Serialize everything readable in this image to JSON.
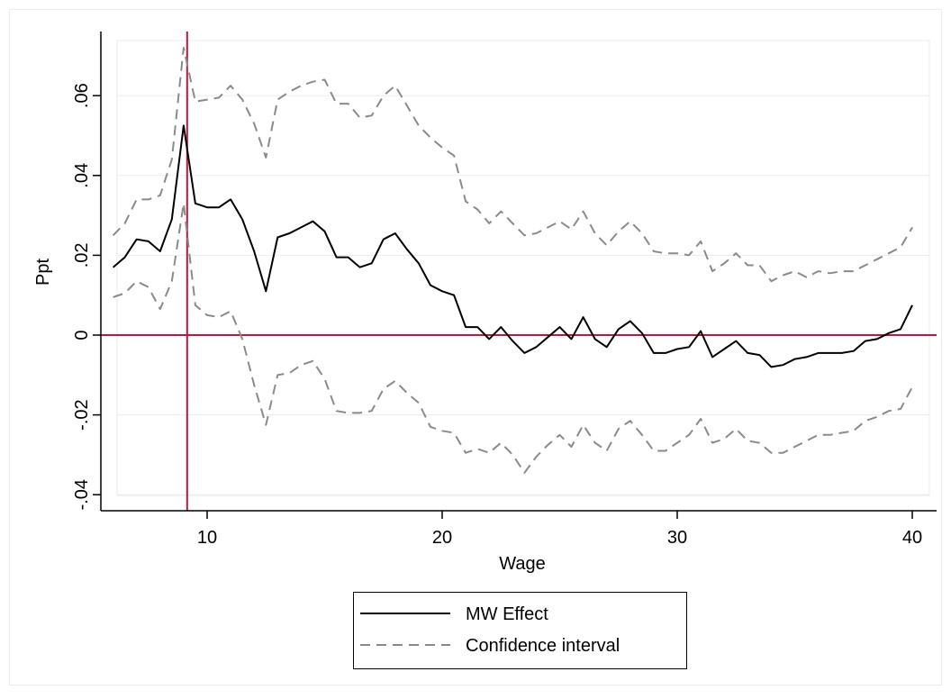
{
  "chart_data": {
    "type": "line",
    "xlabel": "Wage",
    "ylabel": "Ppt",
    "xlim": [
      6,
      41
    ],
    "ylim": [
      -0.044,
      0.076
    ],
    "xticks": [
      10,
      20,
      30,
      40
    ],
    "xtick_labels": [
      "10",
      "20",
      "30",
      "40"
    ],
    "yticks": [
      -0.04,
      -0.02,
      0,
      0.02,
      0.04,
      0.06
    ],
    "ytick_labels": [
      "-.04",
      "-.02",
      "0",
      ".02",
      ".04",
      ".06"
    ],
    "reference_lines": {
      "vertical_x": 9.15,
      "horizontal_y": 0,
      "color": "#c0183a"
    },
    "grid": "horizontal",
    "legend_position": "bottom",
    "x": [
      6.0,
      6.5,
      7.0,
      7.5,
      8.0,
      8.5,
      9.0,
      9.5,
      10.0,
      10.5,
      11.0,
      11.5,
      12.0,
      12.5,
      13.0,
      13.5,
      14.0,
      14.5,
      15.0,
      15.5,
      16.0,
      16.5,
      17.0,
      17.5,
      18.0,
      18.5,
      19.0,
      19.5,
      20.0,
      20.5,
      21.0,
      21.5,
      22.0,
      22.5,
      23.0,
      23.5,
      24.0,
      24.5,
      25.0,
      25.5,
      26.0,
      26.5,
      27.0,
      27.5,
      28.0,
      28.5,
      29.0,
      29.5,
      30.0,
      30.5,
      31.0,
      31.5,
      32.0,
      32.5,
      33.0,
      33.5,
      34.0,
      34.5,
      35.0,
      35.5,
      36.0,
      36.5,
      37.0,
      37.5,
      38.0,
      38.5,
      39.0,
      39.5,
      40.0
    ],
    "series": [
      {
        "name": "MW Effect",
        "color": "#000000",
        "dash": "solid",
        "values": [
          0.017,
          0.0195,
          0.024,
          0.0235,
          0.021,
          0.029,
          0.0525,
          0.033,
          0.032,
          0.032,
          0.034,
          0.029,
          0.021,
          0.011,
          0.0245,
          0.0255,
          0.027,
          0.0285,
          0.026,
          0.0195,
          0.0195,
          0.017,
          0.018,
          0.024,
          0.0255,
          0.0215,
          0.018,
          0.0125,
          0.011,
          0.01,
          0.002,
          0.002,
          -0.001,
          0.002,
          -0.0015,
          -0.0045,
          -0.003,
          -0.0005,
          0.002,
          -0.001,
          0.0045,
          -0.001,
          -0.003,
          0.0015,
          0.0035,
          0.0005,
          -0.0045,
          -0.0045,
          -0.0035,
          -0.003,
          0.001,
          -0.0055,
          -0.0035,
          -0.0015,
          -0.0045,
          -0.005,
          -0.008,
          -0.0075,
          -0.006,
          -0.0055,
          -0.0045,
          -0.0045,
          -0.0045,
          -0.004,
          -0.0015,
          -0.001,
          0.0005,
          0.0015,
          0.0075
        ]
      },
      {
        "name": "Confidence interval",
        "color": "#8a8a8a",
        "dash": "dashed",
        "values": [
          0.025,
          0.028,
          0.034,
          0.034,
          0.035,
          0.044,
          0.072,
          0.0585,
          0.059,
          0.0595,
          0.0625,
          0.059,
          0.053,
          0.0445,
          0.059,
          0.061,
          0.0625,
          0.0635,
          0.064,
          0.058,
          0.058,
          0.0545,
          0.055,
          0.06,
          0.0625,
          0.0575,
          0.0525,
          0.0495,
          0.047,
          0.045,
          0.0335,
          0.0315,
          0.028,
          0.031,
          0.028,
          0.025,
          0.0255,
          0.027,
          0.0285,
          0.0265,
          0.031,
          0.0255,
          0.0225,
          0.026,
          0.0285,
          0.0255,
          0.021,
          0.0205,
          0.0205,
          0.02,
          0.0235,
          0.016,
          0.018,
          0.0205,
          0.0175,
          0.0175,
          0.0135,
          0.015,
          0.016,
          0.0145,
          0.016,
          0.0155,
          0.016,
          0.016,
          0.0175,
          0.019,
          0.0205,
          0.022,
          0.027
        ]
      },
      {
        "name": "",
        "color": "#8a8a8a",
        "dash": "dashed",
        "values": [
          0.0095,
          0.0105,
          0.0135,
          0.012,
          0.0065,
          0.0135,
          0.033,
          0.0075,
          0.005,
          0.0045,
          0.006,
          -0.001,
          -0.0125,
          -0.0225,
          -0.01,
          -0.0095,
          -0.0075,
          -0.0065,
          -0.011,
          -0.019,
          -0.0195,
          -0.0195,
          -0.019,
          -0.0135,
          -0.0115,
          -0.0145,
          -0.017,
          -0.023,
          -0.024,
          -0.0245,
          -0.0295,
          -0.0285,
          -0.0295,
          -0.027,
          -0.03,
          -0.0345,
          -0.0305,
          -0.0275,
          -0.025,
          -0.028,
          -0.0225,
          -0.027,
          -0.029,
          -0.0235,
          -0.0215,
          -0.025,
          -0.029,
          -0.029,
          -0.027,
          -0.025,
          -0.021,
          -0.027,
          -0.026,
          -0.0235,
          -0.0265,
          -0.027,
          -0.0295,
          -0.0295,
          -0.028,
          -0.0265,
          -0.025,
          -0.025,
          -0.0245,
          -0.024,
          -0.0215,
          -0.0205,
          -0.019,
          -0.0185,
          -0.013
        ]
      }
    ],
    "legend": [
      {
        "label": "MW Effect",
        "color": "#000000",
        "dash": "solid"
      },
      {
        "label": "Confidence interval",
        "color": "#8a8a8a",
        "dash": "dashed"
      }
    ]
  }
}
